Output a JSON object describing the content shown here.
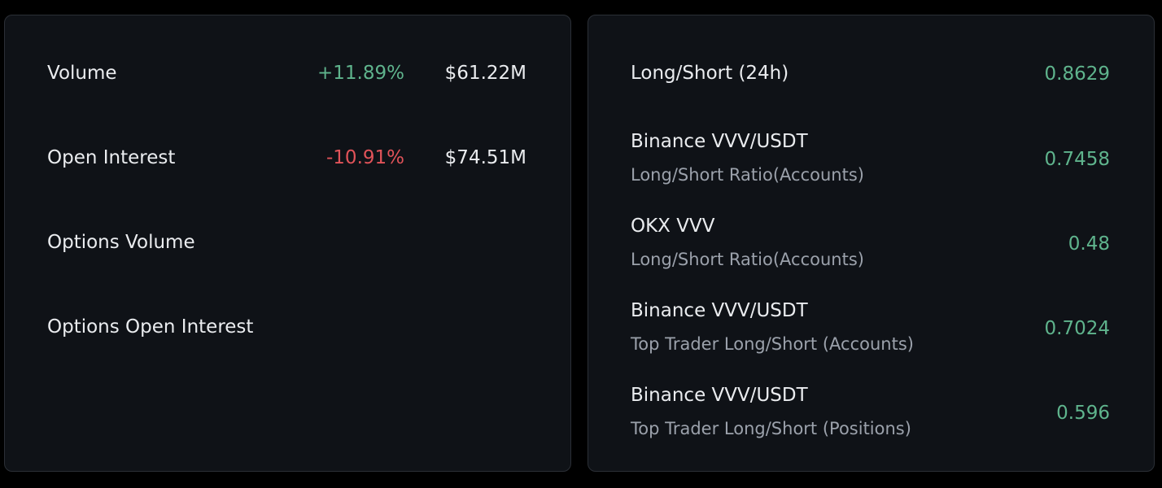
{
  "colors": {
    "background": "#000000",
    "panel": "#0f1217",
    "border": "#2b2f36",
    "text_primary": "#eaecef",
    "text_secondary": "#9ba1ab",
    "positive": "#5fb48d",
    "negative": "#e15359"
  },
  "market_stats": {
    "rows": [
      {
        "label": "Volume",
        "change": "+11.89%",
        "change_direction": "up",
        "amount": "$61.22M"
      },
      {
        "label": "Open Interest",
        "change": "-10.91%",
        "change_direction": "down",
        "amount": "$74.51M"
      },
      {
        "label": "Options Volume",
        "change": "",
        "change_direction": "",
        "amount": ""
      },
      {
        "label": "Options Open Interest",
        "change": "",
        "change_direction": "",
        "amount": ""
      }
    ]
  },
  "long_short": {
    "rows": [
      {
        "title": "Long/Short (24h)",
        "subtitle": "",
        "value": "0.8629"
      },
      {
        "title": "Binance VVV/USDT",
        "subtitle": "Long/Short Ratio(Accounts)",
        "value": "0.7458"
      },
      {
        "title": "OKX VVV",
        "subtitle": "Long/Short Ratio(Accounts)",
        "value": "0.48"
      },
      {
        "title": "Binance VVV/USDT",
        "subtitle": "Top Trader Long/Short (Accounts)",
        "value": "0.7024"
      },
      {
        "title": "Binance VVV/USDT",
        "subtitle": "Top Trader Long/Short (Positions)",
        "value": "0.596"
      }
    ]
  }
}
